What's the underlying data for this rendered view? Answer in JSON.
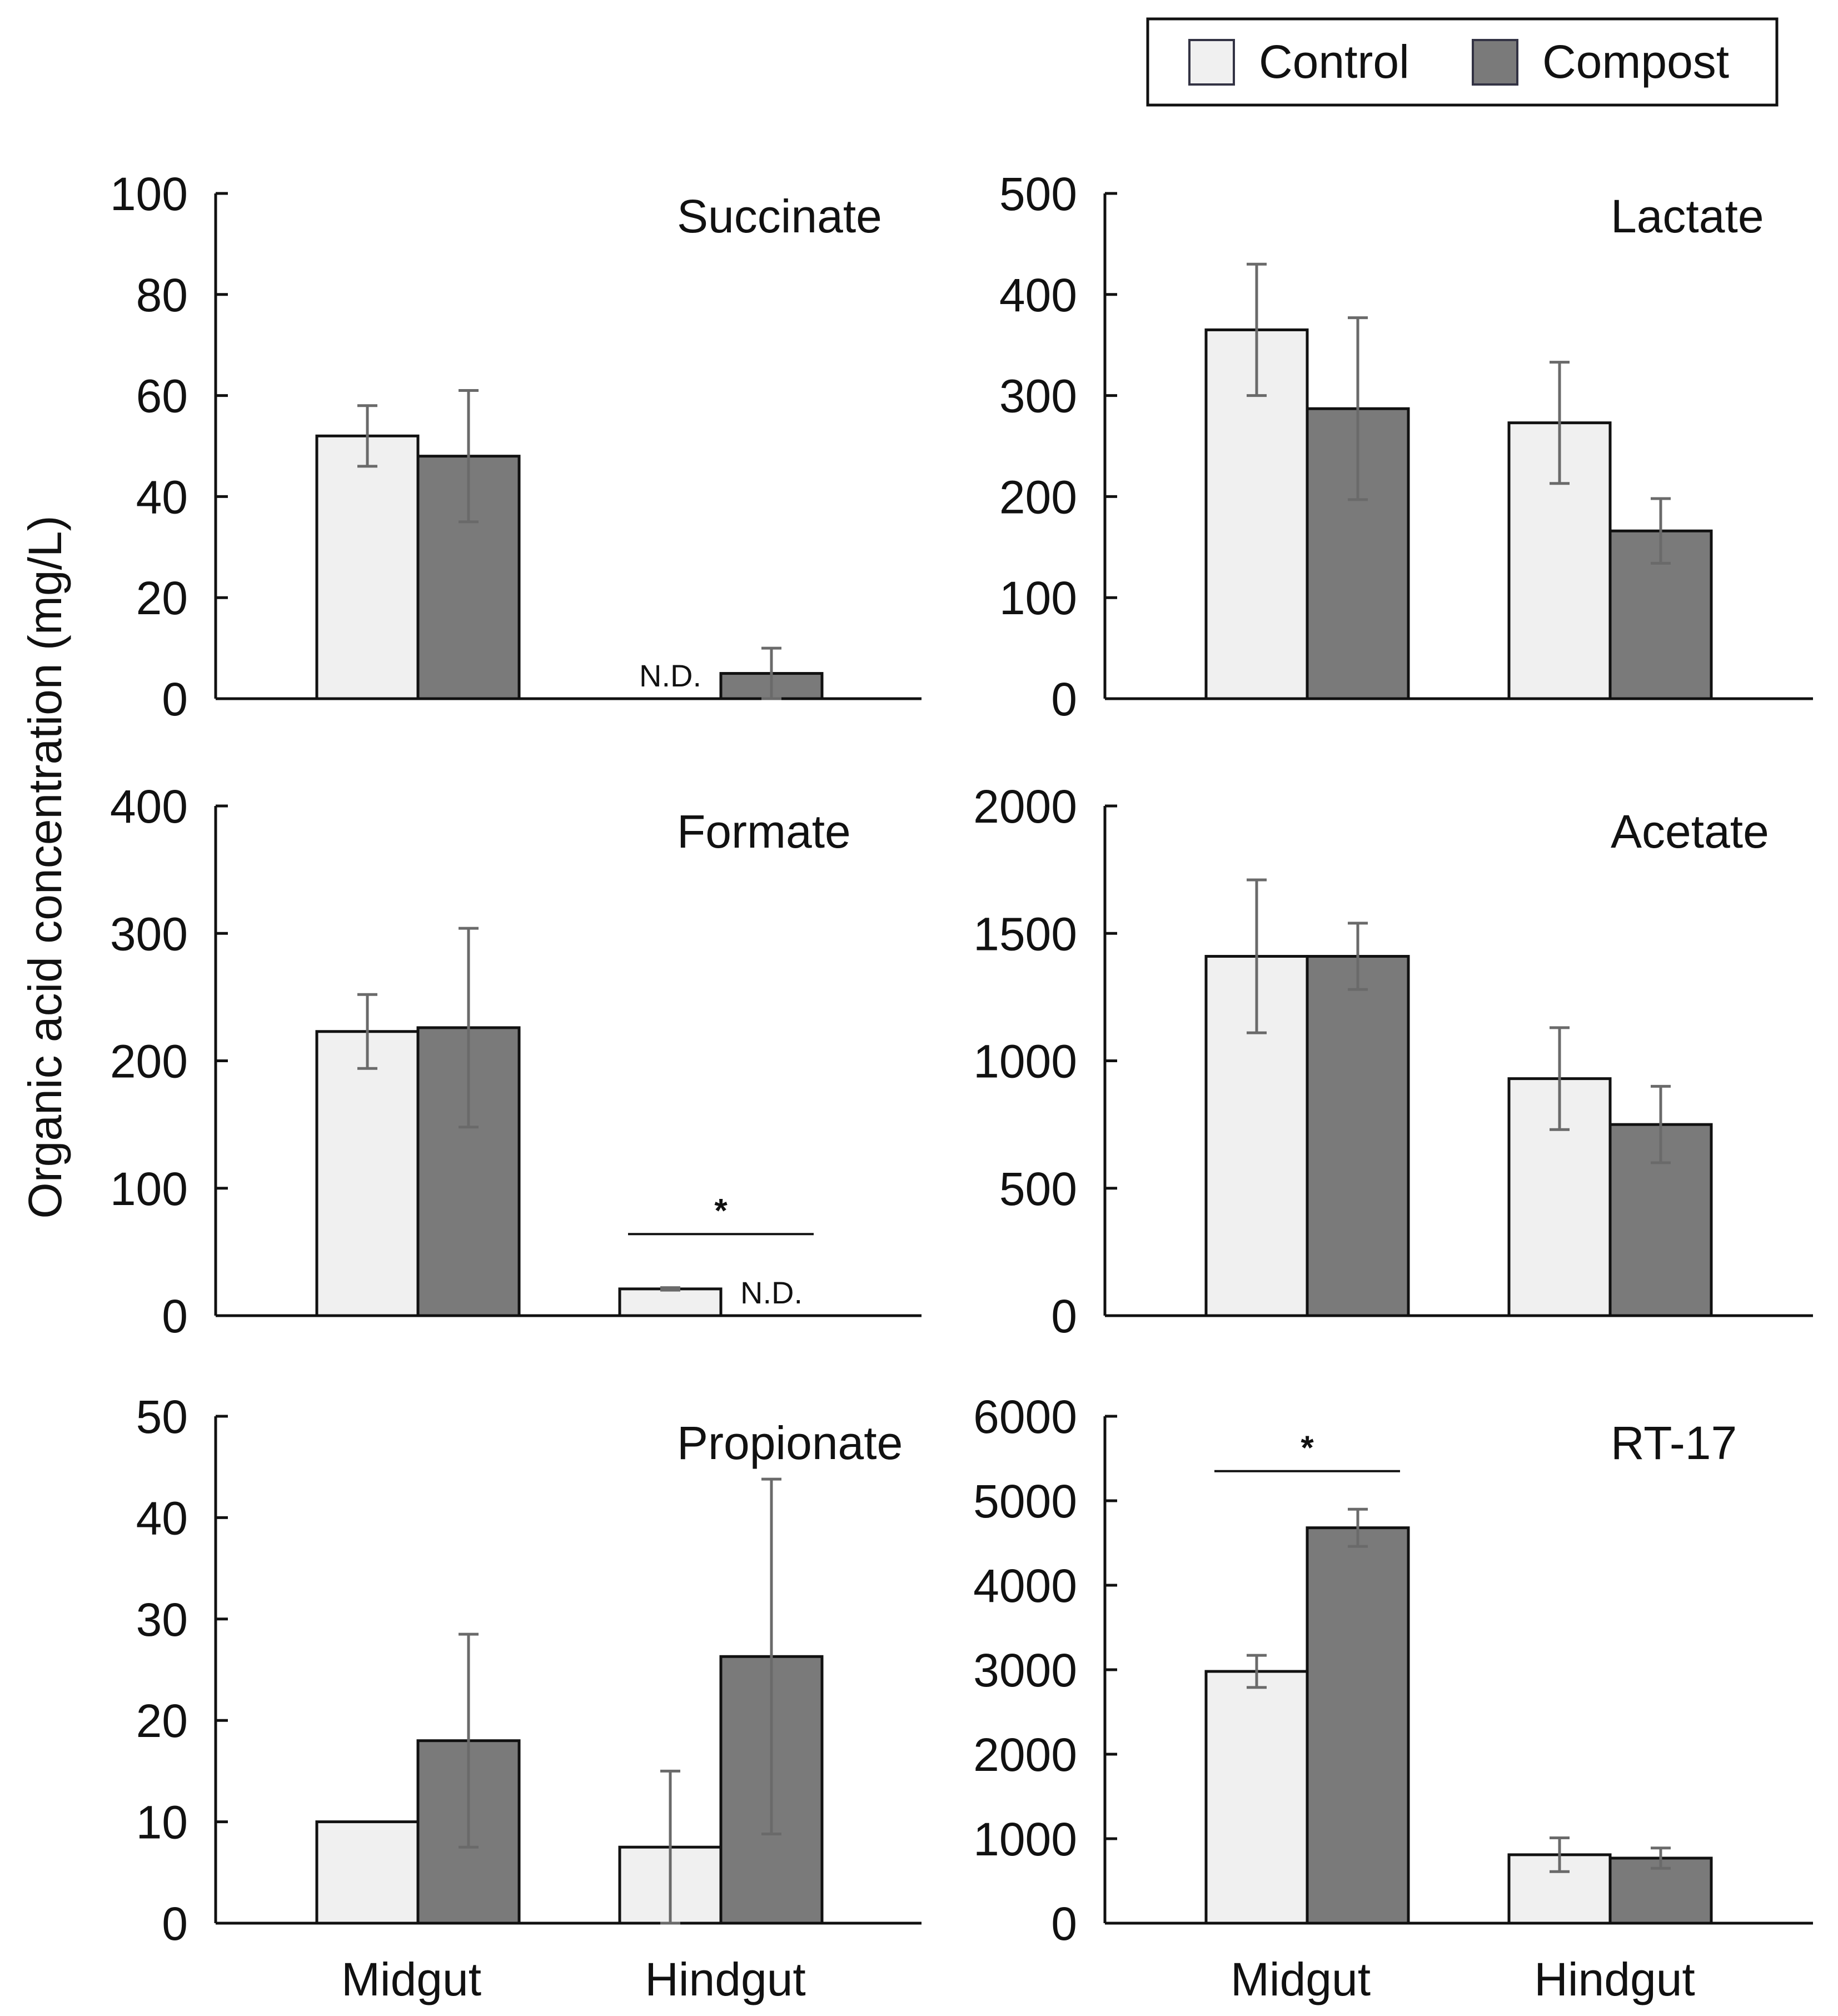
{
  "chart_data": {
    "type": "bar",
    "ylabel": "Organic acid concentration (mg/L)",
    "categories": [
      "Midgut",
      "Hindgut"
    ],
    "legend": [
      {
        "name": "Control",
        "color": "#f0f0f0"
      },
      {
        "name": "Compost",
        "color": "#7a7a7a"
      }
    ],
    "panels": [
      {
        "title": "Succinate",
        "ylim": [
          0,
          100
        ],
        "yticks": [
          0,
          20,
          40,
          60,
          80,
          100
        ],
        "series": [
          {
            "name": "Control",
            "values": [
              52,
              null
            ],
            "errors": [
              6,
              null
            ]
          },
          {
            "name": "Compost",
            "values": [
              48,
              5
            ],
            "errors": [
              13,
              5
            ]
          }
        ],
        "annotations": [
          {
            "text": "N.D.",
            "category": 1,
            "series": "Control"
          }
        ],
        "significance": []
      },
      {
        "title": "Lactate",
        "ylim": [
          0,
          500
        ],
        "yticks": [
          0,
          100,
          200,
          300,
          400,
          500
        ],
        "series": [
          {
            "name": "Control",
            "values": [
              365,
              273
            ],
            "errors": [
              65,
              60
            ]
          },
          {
            "name": "Compost",
            "values": [
              287,
              166
            ],
            "errors": [
              90,
              32
            ]
          }
        ],
        "annotations": [],
        "significance": []
      },
      {
        "title": "Formate",
        "ylim": [
          0,
          400
        ],
        "yticks": [
          0,
          100,
          200,
          300,
          400
        ],
        "series": [
          {
            "name": "Control",
            "values": [
              223,
              21
            ],
            "errors": [
              29,
              1
            ]
          },
          {
            "name": "Compost",
            "values": [
              226,
              null
            ],
            "errors": [
              78,
              null
            ]
          }
        ],
        "annotations": [
          {
            "text": "N.D.",
            "category": 1,
            "series": "Compost"
          }
        ],
        "significance": [
          {
            "text": "*",
            "category": 1,
            "level": 64
          }
        ]
      },
      {
        "title": "Acetate",
        "ylim": [
          0,
          2000
        ],
        "yticks": [
          0,
          500,
          1000,
          1500,
          2000
        ],
        "series": [
          {
            "name": "Control",
            "values": [
              1410,
              930
            ],
            "errors": [
              300,
              200
            ]
          },
          {
            "name": "Compost",
            "values": [
              1410,
              750
            ],
            "errors": [
              130,
              150
            ]
          }
        ],
        "annotations": [],
        "significance": []
      },
      {
        "title": "Propionate",
        "ylim": [
          0,
          50
        ],
        "yticks": [
          0,
          10,
          20,
          30,
          40,
          50
        ],
        "series": [
          {
            "name": "Control",
            "values": [
              10,
              7.5
            ],
            "errors": [
              0,
              7.5
            ]
          },
          {
            "name": "Compost",
            "values": [
              18,
              26.3
            ],
            "errors": [
              10.5,
              17.5
            ]
          }
        ],
        "annotations": [],
        "significance": []
      },
      {
        "title": "RT-17",
        "ylim": [
          0,
          6000
        ],
        "yticks": [
          0,
          1000,
          2000,
          3000,
          4000,
          5000,
          6000
        ],
        "series": [
          {
            "name": "Control",
            "values": [
              2980,
              810
            ],
            "errors": [
              190,
              200
            ]
          },
          {
            "name": "Compost",
            "values": [
              4680,
              770
            ],
            "errors": [
              220,
              120
            ]
          }
        ],
        "annotations": [],
        "significance": [
          {
            "text": "*",
            "category": 0,
            "level": 5350
          }
        ]
      }
    ]
  }
}
